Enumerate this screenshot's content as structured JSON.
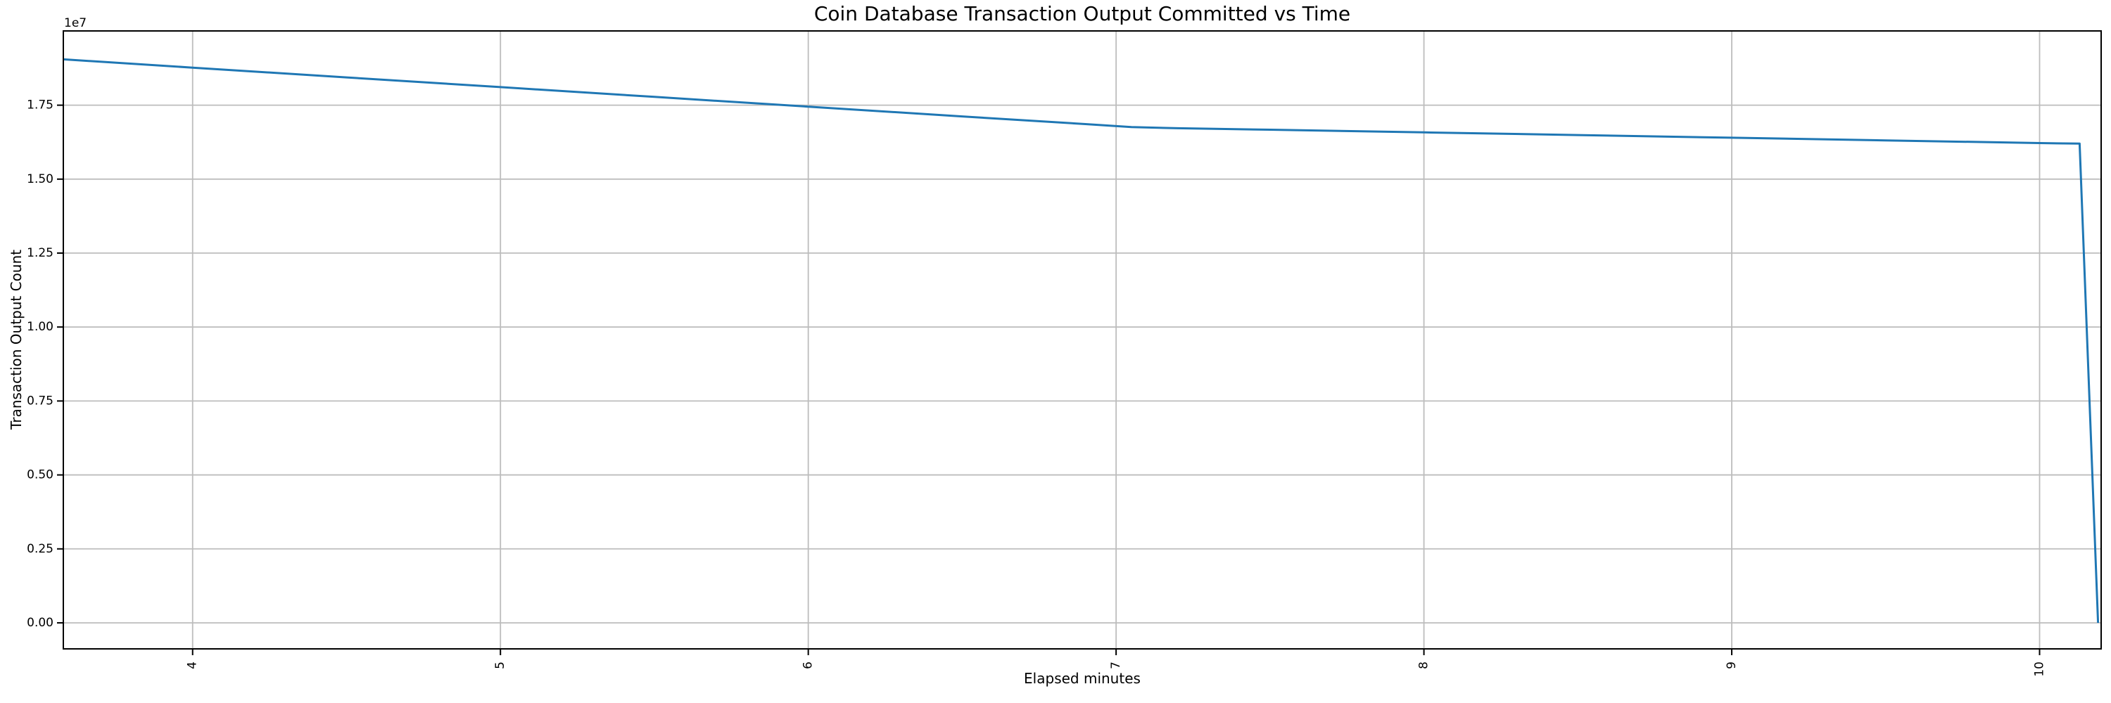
{
  "figure": {
    "background": "#ffffff",
    "colors": {
      "line": "#1f77b4",
      "grid": "#bdbdbd",
      "spine": "#000000",
      "text": "#000000"
    }
  },
  "chart_data": {
    "type": "line",
    "title": "Coin Database Transaction Output Committed vs Time",
    "xlabel": "Elapsed minutes",
    "ylabel": "Transaction Output Count",
    "y_axis_offset_label": "1e7",
    "grid": true,
    "legend": false,
    "xlim": [
      3.58,
      10.2
    ],
    "ylim": [
      -880000,
      20010000
    ],
    "x_ticks": [
      4,
      5,
      6,
      7,
      8,
      9,
      10
    ],
    "x_tick_labels": [
      "4",
      "5",
      "6",
      "7",
      "8",
      "9",
      "10"
    ],
    "x_tick_rotation": 90,
    "y_ticks": [
      0,
      2500000,
      5000000,
      7500000,
      10000000,
      12500000,
      15000000,
      17500000
    ],
    "y_tick_labels": [
      "0.00",
      "0.25",
      "0.50",
      "0.75",
      "1.00",
      "1.25",
      "1.50",
      "1.75"
    ],
    "series": [
      {
        "name": "Transaction Output Count",
        "color": "#1f77b4",
        "points": [
          [
            3.58,
            19050000
          ],
          [
            4.0,
            18770000
          ],
          [
            4.5,
            18440000
          ],
          [
            5.0,
            18110000
          ],
          [
            5.5,
            17780000
          ],
          [
            6.0,
            17450000
          ],
          [
            6.5,
            17120000
          ],
          [
            6.9,
            16860000
          ],
          [
            7.05,
            16760000
          ],
          [
            7.2,
            16720000
          ],
          [
            7.5,
            16670000
          ],
          [
            8.0,
            16580000
          ],
          [
            8.5,
            16490000
          ],
          [
            9.0,
            16400000
          ],
          [
            9.5,
            16310000
          ],
          [
            10.0,
            16220000
          ],
          [
            10.13,
            16200000
          ],
          [
            10.19,
            0
          ]
        ]
      }
    ]
  }
}
